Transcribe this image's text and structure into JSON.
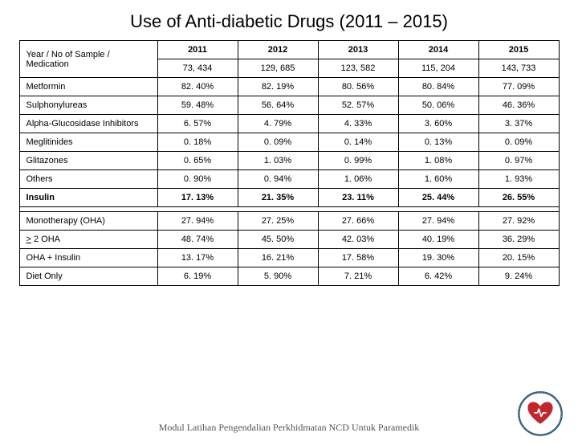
{
  "title": "Use of Anti-diabetic Drugs (2011 – 2015)",
  "header_label": "Year / No of Sample / Medication",
  "years": [
    "2011",
    "2012",
    "2013",
    "2014",
    "2015"
  ],
  "samples": [
    "73, 434",
    "129, 685",
    "123, 582",
    "115, 204",
    "143, 733"
  ],
  "rows_top": [
    {
      "label": "Metformin",
      "v": [
        "82. 40%",
        "82. 19%",
        "80. 56%",
        "80. 84%",
        "77. 09%"
      ]
    },
    {
      "label": "Sulphonylureas",
      "v": [
        "59. 48%",
        "56. 64%",
        "52. 57%",
        "50. 06%",
        "46. 36%"
      ]
    },
    {
      "label": "Alpha-Glucosidase Inhibitors",
      "v": [
        "6. 57%",
        "4. 79%",
        "4. 33%",
        "3. 60%",
        "3. 37%"
      ]
    },
    {
      "label": "Meglitinides",
      "v": [
        "0. 18%",
        "0. 09%",
        "0. 14%",
        "0. 13%",
        "0. 09%"
      ]
    },
    {
      "label": "Glitazones",
      "v": [
        "0. 65%",
        "1. 03%",
        "0. 99%",
        "1. 08%",
        "0. 97%"
      ]
    },
    {
      "label": "Others",
      "v": [
        "0. 90%",
        "0. 94%",
        "1. 06%",
        "1. 60%",
        "1. 93%"
      ]
    }
  ],
  "insulin": {
    "label": "Insulin",
    "v": [
      "17. 13%",
      "21. 35%",
      "23. 11%",
      "25. 44%",
      "26. 55%"
    ]
  },
  "rows_bot": [
    {
      "label": "Monotherapy (OHA)",
      "v": [
        "27. 94%",
        "27. 25%",
        "27. 66%",
        "27. 94%",
        "27. 92%"
      ]
    },
    {
      "label": "> 2 OHA",
      "v": [
        "48. 74%",
        "45. 50%",
        "42. 03%",
        "40. 19%",
        "36. 29%"
      ],
      "underline": true
    },
    {
      "label": "OHA + Insulin",
      "v": [
        "13. 17%",
        "16. 21%",
        "17. 58%",
        "19. 30%",
        "20. 15%"
      ]
    },
    {
      "label": "Diet Only",
      "v": [
        "6. 19%",
        "5. 90%",
        "7. 21%",
        "6. 42%",
        "9. 24%"
      ]
    }
  ],
  "footer": "Modul Latihan Pengendalian Perkhidmatan NCD Untuk Paramedik",
  "colors": {
    "heart": "#c1272d",
    "ring": "#1b4f8b",
    "gold": "#d4a017"
  }
}
